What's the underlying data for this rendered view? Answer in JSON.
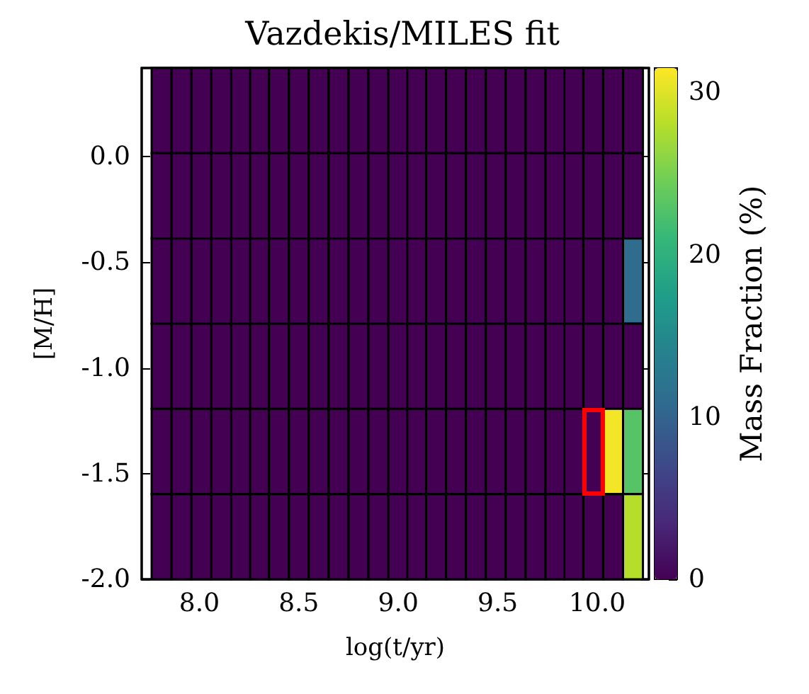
{
  "chart_data": {
    "type": "heatmap",
    "title": "Vazdekis/MILES fit",
    "xlabel": "log(t/yr)",
    "ylabel": "[M/H]",
    "clabel": "Mass Fraction (%)",
    "x": [
      7.81,
      7.91,
      8.01,
      8.11,
      8.21,
      8.3,
      8.4,
      8.5,
      8.6,
      8.7,
      8.8,
      8.9,
      9.0,
      9.09,
      9.19,
      9.29,
      9.39,
      9.49,
      9.59,
      9.69,
      9.79,
      9.88,
      9.98,
      10.08,
      10.18
    ],
    "cells": [
      [
        0,
        0,
        0,
        0,
        0,
        0,
        0,
        0,
        0,
        0,
        0,
        0,
        0,
        0,
        0,
        0,
        0,
        0,
        0,
        0,
        0,
        0,
        0,
        0,
        0
      ],
      [
        0,
        0,
        0,
        0,
        0,
        0,
        0,
        0,
        0,
        0,
        0,
        0,
        0,
        0,
        0,
        0,
        0,
        0,
        0,
        0,
        0,
        0,
        0,
        0,
        0
      ],
      [
        0,
        0,
        0,
        0,
        0,
        0,
        0,
        0,
        0,
        0,
        0,
        0,
        0,
        0,
        0,
        0,
        0,
        0,
        0,
        0,
        0,
        0,
        0,
        0,
        11
      ],
      [
        0,
        0,
        0,
        0,
        0,
        0,
        0,
        0,
        0,
        0,
        0,
        0,
        0,
        0,
        0,
        0,
        0,
        0,
        0,
        0,
        0,
        0,
        0,
        0,
        0
      ],
      [
        0,
        0,
        0,
        0,
        0,
        0,
        0,
        0,
        0,
        0,
        0,
        0,
        0,
        0,
        0,
        0,
        0,
        0,
        0,
        0,
        0,
        0,
        0,
        31,
        23
      ],
      [
        0,
        0,
        0,
        0,
        0,
        0,
        0,
        0,
        0,
        0,
        0,
        0,
        0,
        0,
        0,
        0,
        0,
        0,
        0,
        0,
        0,
        0,
        0,
        0,
        28
      ]
    ],
    "clim": [
      0,
      31.5
    ],
    "cticks": [
      0,
      10,
      20,
      30
    ],
    "xlim": [
      7.71,
      10.26
    ],
    "xticks": [
      {
        "value": 8,
        "label": "8.0"
      },
      {
        "value": 8.5,
        "label": "8.5"
      },
      {
        "value": 9,
        "label": "9.0"
      },
      {
        "value": 9.5,
        "label": "9.5"
      },
      {
        "value": 10,
        "label": "10.0"
      }
    ],
    "ylim": [
      -2.0,
      0.42
    ],
    "yticks": [
      {
        "value": -2,
        "label": "-2.0"
      },
      {
        "value": -1.5,
        "label": "-1.5"
      },
      {
        "value": -1,
        "label": "-1.0"
      },
      {
        "value": -0.5,
        "label": "-0.5"
      },
      {
        "value": 0,
        "label": "0.0"
      }
    ],
    "grid": false
  }
}
